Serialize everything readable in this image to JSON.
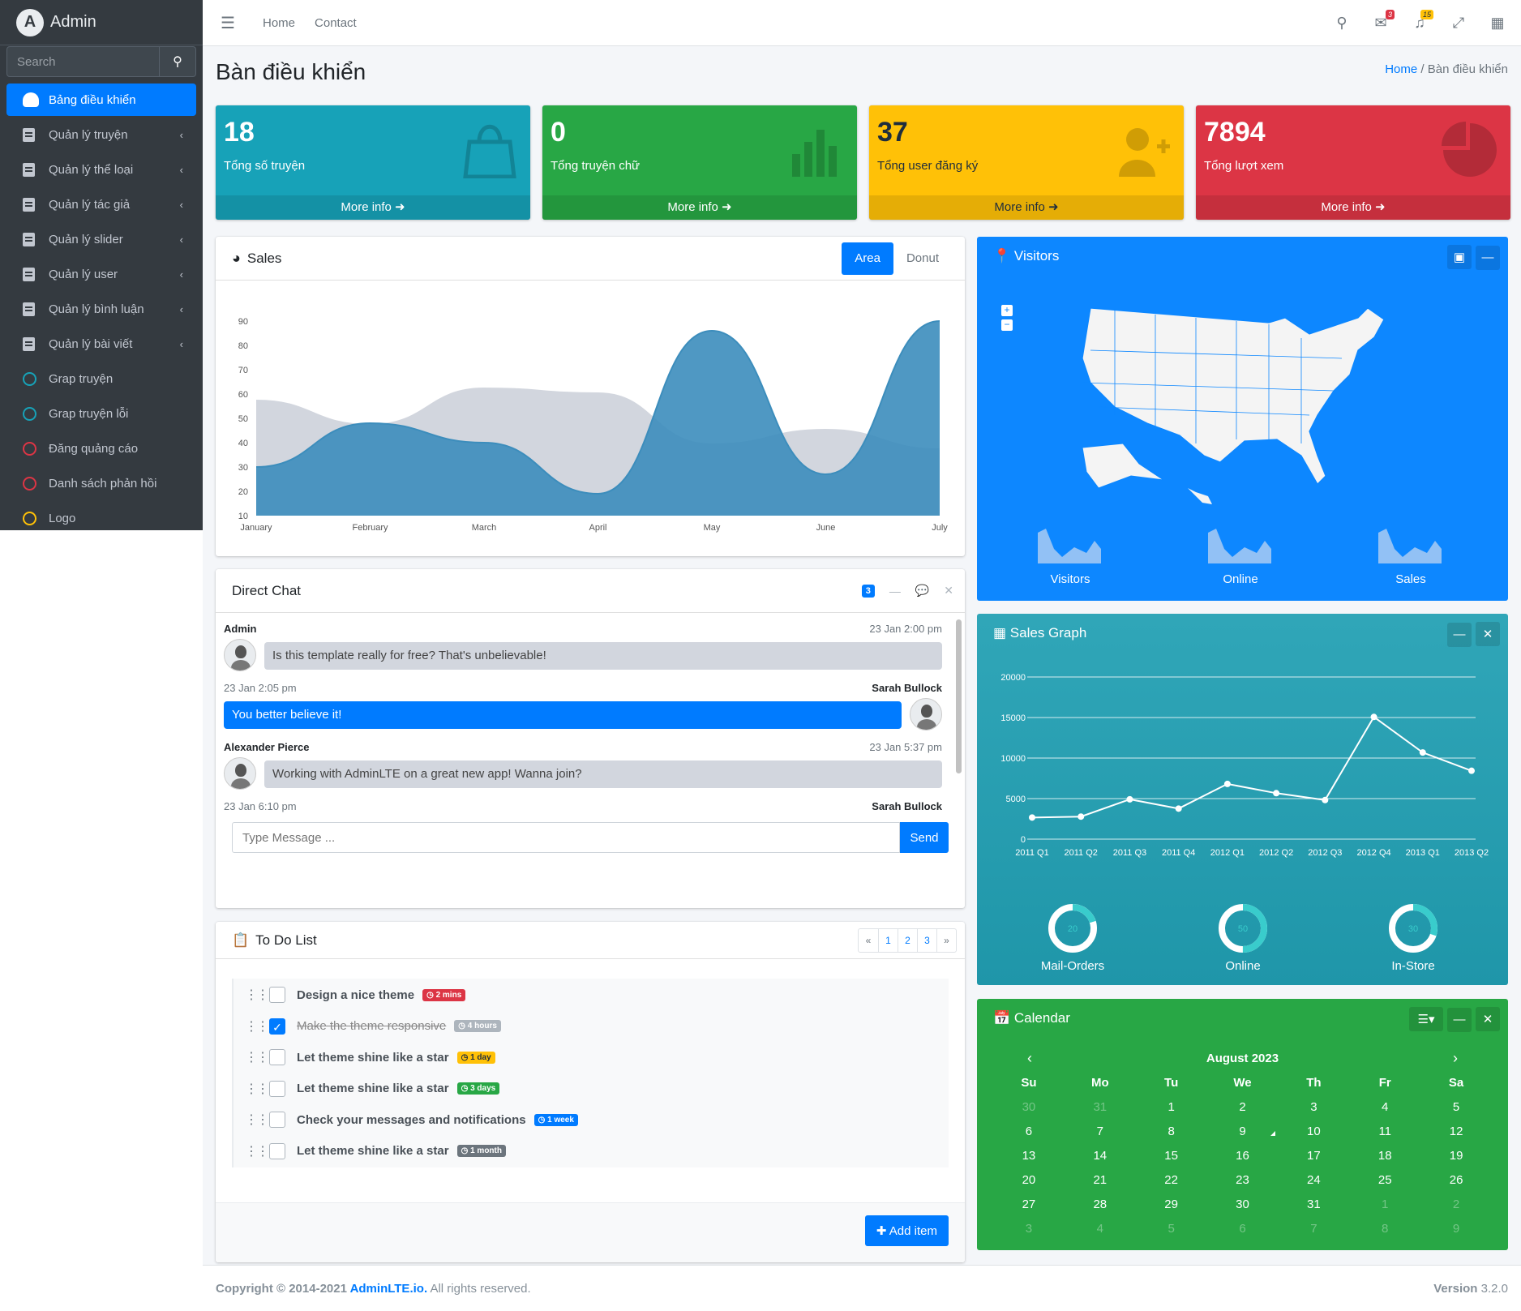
{
  "brand": {
    "name": "Admin"
  },
  "sidebar": {
    "search_placeholder": "Search",
    "items": [
      {
        "label": "Bảng điều khiển",
        "icon": "gauge-icon",
        "active": true
      },
      {
        "label": "Quản lý truyện",
        "icon": "book-icon"
      },
      {
        "label": "Quản lý thể loại",
        "icon": "book-icon"
      },
      {
        "label": "Quản lý tác giả",
        "icon": "book-icon"
      },
      {
        "label": "Quản lý slider",
        "icon": "book-icon"
      },
      {
        "label": "Quản lý user",
        "icon": "book-icon"
      },
      {
        "label": "Quản lý bình luận",
        "icon": "book-icon"
      },
      {
        "label": "Quản lý bài viết",
        "icon": "book-icon"
      },
      {
        "label": "Grap truyện",
        "icon": "circle-icon",
        "color": "#17a2b8"
      },
      {
        "label": "Grap truyện lỗi",
        "icon": "circle-icon",
        "color": "#17a2b8"
      },
      {
        "label": "Đăng quảng cáo",
        "icon": "circle-icon",
        "color": "#dc3545"
      },
      {
        "label": "Danh sách phản hồi",
        "icon": "circle-icon",
        "color": "#dc3545"
      },
      {
        "label": "Logo",
        "icon": "circle-icon",
        "color": "#ffc107"
      }
    ]
  },
  "topbar": {
    "links": [
      "Home",
      "Contact"
    ],
    "messages_badge": "3",
    "notifications_badge": "15"
  },
  "page": {
    "title": "Bàn điều khiển",
    "breadcrumb_home": "Home",
    "breadcrumb_current": "Bàn điều khiển"
  },
  "boxes": [
    {
      "value": "18",
      "label": "Tổng số truyện",
      "more": "More info",
      "color": "#17a2b8",
      "icon": "shopping-bag-icon"
    },
    {
      "value": "0",
      "label": "Tổng truyện chữ",
      "more": "More info",
      "color": "#28a745",
      "icon": "bar-chart-icon"
    },
    {
      "value": "37",
      "label": "Tổng user đăng ký",
      "more": "More info",
      "color": "#ffc107",
      "icon": "user-plus-icon"
    },
    {
      "value": "7894",
      "label": "Tổng lượt xem",
      "more": "More info",
      "color": "#dc3545",
      "icon": "pie-chart-icon"
    }
  ],
  "sales": {
    "title": "Sales",
    "tab_area": "Area",
    "tab_donut": "Donut"
  },
  "chart_data": [
    {
      "type": "area",
      "categories": [
        "January",
        "February",
        "March",
        "April",
        "May",
        "June",
        "July"
      ],
      "yticks": [
        10,
        20,
        30,
        40,
        50,
        60,
        70,
        80,
        90
      ],
      "ylim": [
        10,
        90
      ],
      "series": [
        {
          "values": [
            58,
            48,
            63,
            61,
            40,
            46,
            38
          ],
          "color": "#d2d6de"
        },
        {
          "values": [
            30,
            48,
            40,
            19,
            86,
            27,
            90
          ],
          "color": "#3c8dbc"
        }
      ]
    },
    {
      "type": "line",
      "categories": [
        "2011 Q1",
        "2011 Q2",
        "2011 Q3",
        "2011 Q4",
        "2012 Q1",
        "2012 Q2",
        "2012 Q3",
        "2012 Q4",
        "2013 Q1",
        "2013 Q2"
      ],
      "yticks": [
        0,
        5000,
        10000,
        15000,
        20000
      ],
      "ylim": [
        0,
        20000
      ],
      "series": [
        {
          "values": [
            2666,
            2778,
            4912,
            3767,
            6810,
            5670,
            4820,
            15073,
            10687,
            8432
          ]
        }
      ]
    }
  ],
  "visitors": {
    "title": "Visitors",
    "sparklines": [
      "Visitors",
      "Online",
      "Sales"
    ]
  },
  "sales_graph": {
    "title": "Sales Graph",
    "knobs": [
      {
        "label": "Mail-Orders",
        "value": 20
      },
      {
        "label": "Online",
        "value": 50
      },
      {
        "label": "In-Store",
        "value": 30
      }
    ]
  },
  "chat": {
    "title": "Direct Chat",
    "badge": "3",
    "messages": [
      {
        "name": "Admin",
        "time": "23 Jan 2:00 pm",
        "text": "Is this template really for free? That's unbelievable!",
        "side": "left"
      },
      {
        "name": "Sarah Bullock",
        "time": "23 Jan 2:05 pm",
        "text": "You better believe it!",
        "side": "right"
      },
      {
        "name": "Alexander Pierce",
        "time": "23 Jan 5:37 pm",
        "text": "Working with AdminLTE on a great new app! Wanna join?",
        "side": "left"
      },
      {
        "name": "Sarah Bullock",
        "time": "23 Jan 6:10 pm",
        "text": "",
        "side": "right"
      }
    ],
    "input_placeholder": "Type Message ...",
    "send": "Send"
  },
  "todo": {
    "title": "To Do List",
    "pages": [
      "«",
      "1",
      "2",
      "3",
      "»"
    ],
    "items": [
      {
        "text": "Design a nice theme",
        "badge": "2 mins",
        "color": "#dc3545",
        "done": false
      },
      {
        "text": "Make the theme responsive",
        "badge": "4 hours",
        "color": "#adb5bd",
        "done": true
      },
      {
        "text": "Let theme shine like a star",
        "badge": "1 day",
        "color": "#ffc107",
        "done": false
      },
      {
        "text": "Let theme shine like a star",
        "badge": "3 days",
        "color": "#28a745",
        "done": false
      },
      {
        "text": "Check your messages and notifications",
        "badge": "1 week",
        "color": "#007bff",
        "done": false
      },
      {
        "text": "Let theme shine like a star",
        "badge": "1 month",
        "color": "#6c757d",
        "done": false
      }
    ],
    "add": "Add item"
  },
  "calendar": {
    "title": "Calendar",
    "month": "August 2023",
    "days": [
      "Su",
      "Mo",
      "Tu",
      "We",
      "Th",
      "Fr",
      "Sa"
    ],
    "weeks": [
      [
        "30",
        "31",
        "1",
        "2",
        "3",
        "4",
        "5"
      ],
      [
        "6",
        "7",
        "8",
        "9",
        "10",
        "11",
        "12"
      ],
      [
        "13",
        "14",
        "15",
        "16",
        "17",
        "18",
        "19"
      ],
      [
        "20",
        "21",
        "22",
        "23",
        "24",
        "25",
        "26"
      ],
      [
        "27",
        "28",
        "29",
        "30",
        "31",
        "1",
        "2"
      ],
      [
        "3",
        "4",
        "5",
        "6",
        "7",
        "8",
        "9"
      ]
    ],
    "today": "9"
  },
  "footer": {
    "copy": "Copyright © 2014-2021 ",
    "link": "AdminLTE.io.",
    "rest": " All rights reserved.",
    "version_label": "Version",
    "version": "3.2.0"
  }
}
